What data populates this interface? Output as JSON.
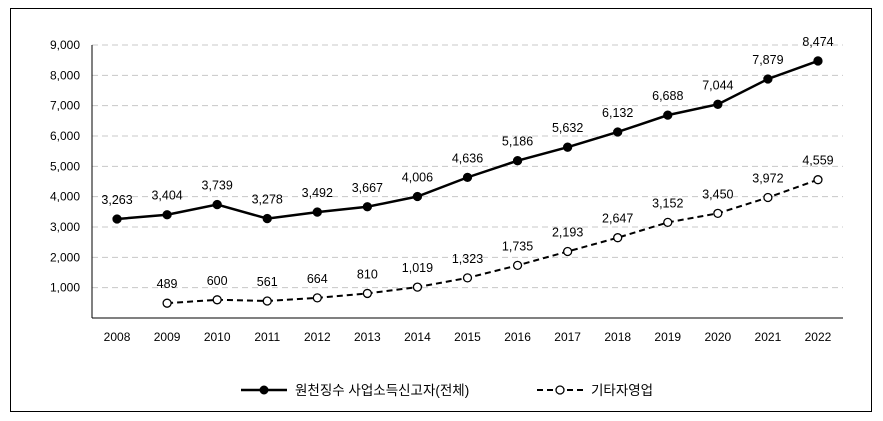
{
  "chart_data": {
    "type": "line",
    "title": "",
    "xlabel": "",
    "ylabel": "",
    "x": [
      "2008",
      "2009",
      "2010",
      "2011",
      "2012",
      "2013",
      "2014",
      "2015",
      "2016",
      "2017",
      "2018",
      "2019",
      "2020",
      "2021",
      "2022"
    ],
    "ylim": [
      0,
      9000
    ],
    "yticks": [
      1000,
      2000,
      3000,
      4000,
      5000,
      6000,
      7000,
      8000,
      9000
    ],
    "ytick_labels": [
      "1,000",
      "2,000",
      "3,000",
      "4,000",
      "5,000",
      "6,000",
      "7,000",
      "8,000",
      "9,000"
    ],
    "grid": "horizontal dashed",
    "legend_position": "bottom",
    "series": [
      {
        "name": "원천징수 사업소득신고자(전체)",
        "style": "solid-filled-marker",
        "color": "#000000",
        "values": [
          3263,
          3404,
          3739,
          3278,
          3492,
          3667,
          4006,
          4636,
          5186,
          5632,
          6132,
          6688,
          7044,
          7879,
          8474
        ],
        "labels": [
          "3,263",
          "3,404",
          "3,739",
          "3,278",
          "3,492",
          "3,667",
          "4,006",
          "4,636",
          "5,186",
          "5,632",
          "6,132",
          "6,688",
          "7,044",
          "7,879",
          "8,474"
        ]
      },
      {
        "name": "기타자영업",
        "style": "dashed-hollow-marker",
        "color": "#000000",
        "values": [
          null,
          489,
          600,
          561,
          664,
          810,
          1019,
          1323,
          1735,
          2193,
          2647,
          3152,
          3450,
          3972,
          4559
        ],
        "labels": [
          "",
          "489",
          "600",
          "561",
          "664",
          "810",
          "1,019",
          "1,323",
          "1,735",
          "2,193",
          "2,647",
          "3,152",
          "3,450",
          "3,972",
          "4,559"
        ]
      }
    ]
  }
}
